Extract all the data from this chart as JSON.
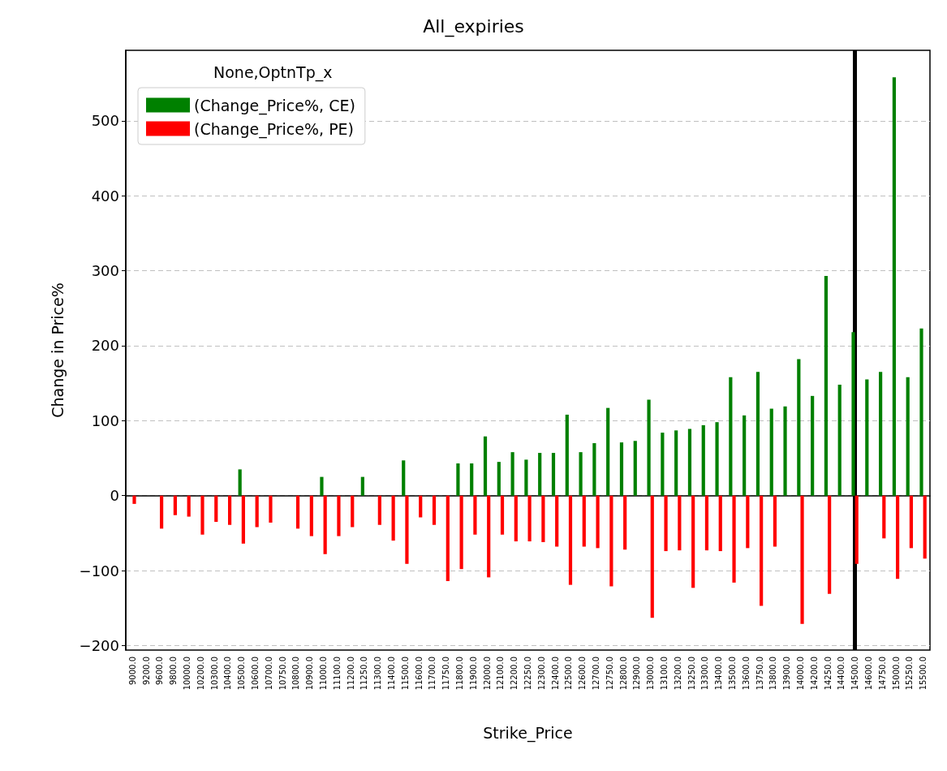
{
  "chart_data": {
    "type": "bar",
    "title": "All_expiries",
    "xlabel": "Strike_Price",
    "ylabel": "Change in Price%",
    "legend_title": "None,OptnTp_x",
    "categories": [
      "9000.0",
      "9200.0",
      "9600.0",
      "9800.0",
      "10000.0",
      "10200.0",
      "10300.0",
      "10400.0",
      "10500.0",
      "10600.0",
      "10700.0",
      "10750.0",
      "10800.0",
      "10900.0",
      "11000.0",
      "11100.0",
      "11200.0",
      "11250.0",
      "11300.0",
      "11400.0",
      "11500.0",
      "11600.0",
      "11700.0",
      "11750.0",
      "11800.0",
      "11900.0",
      "12000.0",
      "12100.0",
      "12200.0",
      "12250.0",
      "12300.0",
      "12400.0",
      "12500.0",
      "12600.0",
      "12700.0",
      "12750.0",
      "12800.0",
      "12900.0",
      "13000.0",
      "13100.0",
      "13200.0",
      "13250.0",
      "13300.0",
      "13400.0",
      "13500.0",
      "13600.0",
      "13750.0",
      "13800.0",
      "13900.0",
      "14000.0",
      "14200.0",
      "14250.0",
      "14400.0",
      "14500.0",
      "14600.0",
      "14750.0",
      "15000.0",
      "15250.0",
      "15500.0"
    ],
    "series": [
      {
        "name": "(Change_Price%, CE)",
        "color": "#008000",
        "values": [
          null,
          null,
          null,
          null,
          null,
          null,
          null,
          null,
          35,
          null,
          null,
          null,
          null,
          null,
          25,
          null,
          null,
          25,
          null,
          null,
          47,
          null,
          null,
          null,
          43,
          43,
          79,
          45,
          58,
          48,
          57,
          57,
          108,
          58,
          70,
          117,
          71,
          73,
          128,
          84,
          87,
          89,
          94,
          98,
          158,
          107,
          165,
          116,
          119,
          182,
          133,
          293,
          148,
          218,
          155,
          165,
          558,
          158,
          223
        ]
      },
      {
        "name": "(Change_Price%, PE)",
        "color": "#ff0000",
        "values": [
          -11,
          null,
          -44,
          -26,
          -28,
          -52,
          -35,
          -39,
          -64,
          -42,
          -36,
          null,
          -44,
          -54,
          -78,
          -54,
          -42,
          null,
          -39,
          -60,
          -91,
          -29,
          -39,
          -114,
          -98,
          -52,
          -109,
          -52,
          -61,
          -61,
          -62,
          -68,
          -119,
          -68,
          -70,
          -121,
          -72,
          null,
          -163,
          -74,
          -73,
          -123,
          -73,
          -74,
          -116,
          -70,
          -147,
          -68,
          null,
          -171,
          null,
          -131,
          null,
          -91,
          null,
          -57,
          -111,
          -70,
          -84
        ]
      }
    ],
    "ylim": [
      -206,
      594
    ],
    "yticks": [
      {
        "value": -200,
        "label": "−200"
      },
      {
        "value": -100,
        "label": "−100"
      },
      0,
      100,
      200,
      300,
      400,
      500
    ],
    "ref_lines": [
      {
        "axis": "x",
        "value": "14500.0",
        "color": "#000000"
      }
    ],
    "grid": "y",
    "legend": "top left"
  }
}
